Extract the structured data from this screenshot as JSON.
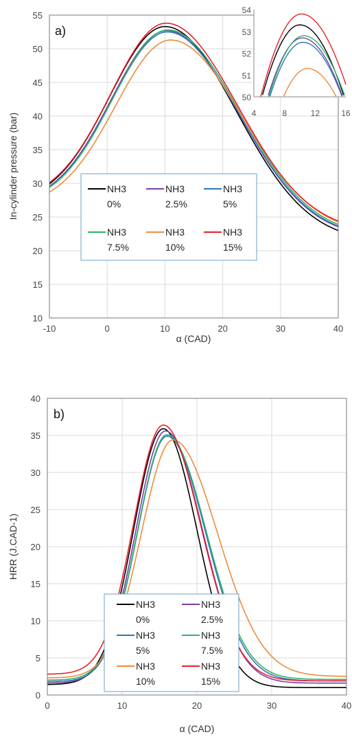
{
  "chart_data": [
    {
      "type": "line",
      "panel_label": "a)",
      "xlabel": "α (CAD)",
      "ylabel": "In-cylinder pressure (bar)",
      "xlim": [
        -10,
        40
      ],
      "ylim": [
        10,
        55
      ],
      "xticks": [
        "-10",
        "0",
        "10",
        "20",
        "30",
        "40"
      ],
      "yticks": [
        "10",
        "15",
        "20",
        "25",
        "30",
        "35",
        "40",
        "45",
        "50",
        "55"
      ],
      "grid": true,
      "legend": "center-left",
      "series": [
        {
          "name": "NH3 0%",
          "color": "#000000",
          "peak": 53.3,
          "peak_x": 10.0,
          "start": 27.0,
          "end": 21.3
        },
        {
          "name": "NH3 2.5%",
          "color": "#7b3fa8",
          "peak": 52.7,
          "peak_x": 10.3,
          "start": 26.9,
          "end": 21.8
        },
        {
          "name": "NH3 5%",
          "color": "#2f75b5",
          "peak": 52.5,
          "peak_x": 10.4,
          "start": 26.9,
          "end": 21.9
        },
        {
          "name": "NH3 7.5%",
          "color": "#2db36a",
          "peak": 52.8,
          "peak_x": 10.5,
          "start": 26.8,
          "end": 22.1
        },
        {
          "name": "NH3 10%",
          "color": "#ed8b3a",
          "peak": 51.3,
          "peak_x": 11.0,
          "start": 26.5,
          "end": 22.4
        },
        {
          "name": "NH3 15%",
          "color": "#e8202a",
          "peak": 53.8,
          "peak_x": 10.2,
          "start": 27.3,
          "end": 22.7
        }
      ],
      "inset": {
        "xlim": [
          4,
          16
        ],
        "ylim": [
          50,
          54
        ],
        "xticks": [
          "4",
          "8",
          "12",
          "16"
        ],
        "yticks": [
          "50",
          "51",
          "52",
          "53",
          "54"
        ]
      },
      "legend_entries": [
        {
          "line1": "NH3",
          "line2": "0%",
          "color": "#000000"
        },
        {
          "line1": "NH3",
          "line2": "2.5%",
          "color": "#7b3fa8"
        },
        {
          "line1": "NH3",
          "line2": "5%",
          "color": "#2f75b5"
        },
        {
          "line1": "NH3",
          "line2": "7.5%",
          "color": "#2db36a"
        },
        {
          "line1": "NH3",
          "line2": "10%",
          "color": "#ed8b3a"
        },
        {
          "line1": "NH3",
          "line2": "15%",
          "color": "#e8202a"
        }
      ]
    },
    {
      "type": "line",
      "panel_label": "b)",
      "xlabel": "α (CAD)",
      "ylabel": "HRR (J.CAD-1)",
      "xlim": [
        0,
        40
      ],
      "ylim": [
        0,
        40
      ],
      "xticks": [
        "0",
        "10",
        "20",
        "30",
        "40"
      ],
      "yticks": [
        "0",
        "5",
        "10",
        "15",
        "20",
        "25",
        "30",
        "35",
        "40"
      ],
      "grid": true,
      "legend": "bottom-center",
      "series": [
        {
          "name": "NH3 0%",
          "color": "#000000",
          "peak": 35.9,
          "peak_x": 15.5,
          "start": 1.4,
          "end": 1.0
        },
        {
          "name": "NH3 2.5%",
          "color": "#7b3fa8",
          "peak": 35.6,
          "peak_x": 15.8,
          "start": 1.6,
          "end": 1.6
        },
        {
          "name": "NH3 5%",
          "color": "#2f75b5",
          "peak": 34.9,
          "peak_x": 16.0,
          "start": 1.8,
          "end": 1.9
        },
        {
          "name": "NH3 7.5%",
          "color": "#2db36a",
          "peak": 35.1,
          "peak_x": 16.0,
          "start": 2.0,
          "end": 2.1
        },
        {
          "name": "NH3 10%",
          "color": "#ed8b3a",
          "peak": 34.4,
          "peak_x": 16.8,
          "start": 2.3,
          "end": 2.5
        },
        {
          "name": "NH3 15%",
          "color": "#e8202a",
          "peak": 36.4,
          "peak_x": 15.5,
          "start": 2.8,
          "end": 1.9
        }
      ],
      "legend_entries": [
        {
          "line1": "NH3",
          "line2": "0%",
          "color": "#000000"
        },
        {
          "line1": "NH3",
          "line2": "2.5%",
          "color": "#7b3fa8"
        },
        {
          "line1": "NH3",
          "line2": "5%",
          "color": "#2f75b5"
        },
        {
          "line1": "NH3",
          "line2": "7.5%",
          "color": "#2db36a"
        },
        {
          "line1": "NH3",
          "line2": "10%",
          "color": "#ed8b3a"
        },
        {
          "line1": "NH3",
          "line2": "15%",
          "color": "#e8202a"
        }
      ]
    }
  ]
}
